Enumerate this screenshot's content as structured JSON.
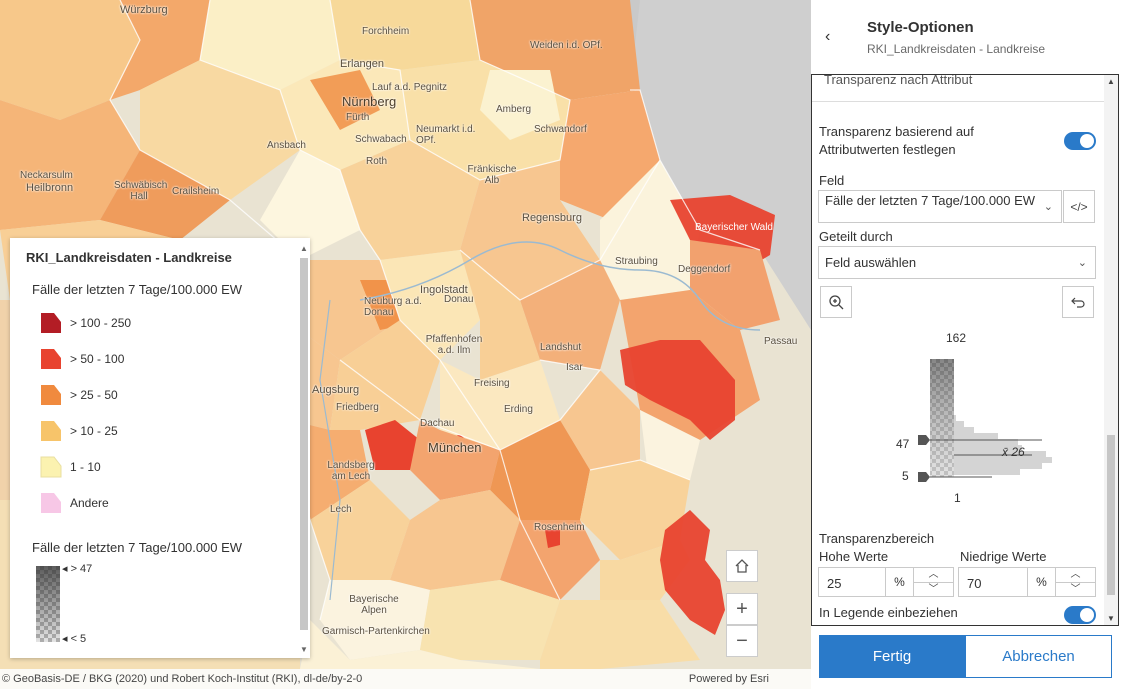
{
  "map": {
    "labels": {
      "wuerzburg": "Würzburg",
      "forchheim": "Forchheim",
      "erlangen": "Erlangen",
      "lauf": "Lauf a.d. Pegnitz",
      "nuernberg": "Nürnberg",
      "fuerth": "Fürth",
      "schwabach": "Schwabach",
      "roth": "Roth",
      "ansbach": "Ansbach",
      "neumarkt": "Neumarkt i.d. OPf.",
      "amberg": "Amberg",
      "schwandorf": "Schwandorf",
      "weiden": "Weiden i.d. OPf.",
      "fraenkische": "Fränkische Alb",
      "neckarsulm": "Neckarsulm",
      "heilbronn": "Heilbronn",
      "schwaebisch": "Schwäbisch Hall",
      "crailsheim": "Crailsheim",
      "regensburg": "Regensburg",
      "bayerwald": "Bayerischer Wald",
      "straubing": "Straubing",
      "deggendorf": "Deggendorf",
      "ingolstadt": "Ingolstadt",
      "neuburg": "Neuburg a.d. Donau",
      "donau": "Donau",
      "pfaffenhofen": "Pfaffenhofen a.d. Ilm",
      "landshut": "Landshut",
      "passau": "Passau",
      "augsburg": "Augsburg",
      "friedberg": "Friedberg",
      "dachau": "Dachau",
      "freising": "Freising",
      "erding": "Erding",
      "muenchen": "München",
      "landsberg": "Landsberg am Lech",
      "rosenheim": "Rosenheim",
      "alpen": "Bayerische Alpen",
      "garmisch": "Garmisch-Partenkirchen",
      "lech": "Lech",
      "isar": "Isar"
    },
    "zoom_in": "+",
    "zoom_out": "−",
    "attribution": "© GeoBasis-DE / BKG (2020) und Robert Koch-Institut (RKI), dl-de/by-2-0",
    "powered_by": "Powered by Esri"
  },
  "legend": {
    "layer_title": "RKI_Landkreisdaten - Landkreise",
    "field_title": "Fälle der letzten 7 Tage/100.000 EW",
    "classes": [
      {
        "label": "> 100 - 250",
        "color": "#b31d25"
      },
      {
        "label": "> 50 - 100",
        "color": "#e8432f"
      },
      {
        "label": "> 25 - 50",
        "color": "#f08a3e"
      },
      {
        "label": "> 10 - 25",
        "color": "#f7c46a"
      },
      {
        "label": "1 - 10",
        "color": "#fbf2b0"
      },
      {
        "label": "Andere",
        "color": "#f7c7e6"
      }
    ],
    "transparency_title": "Fälle der letzten 7 Tage/100.000 EW",
    "transparency_high": "> 47",
    "transparency_low": "< 5"
  },
  "panel": {
    "title": "Style-Optionen",
    "subtitle": "RKI_Landkreisdaten - Landkreise",
    "section_header": "Transparenz nach Attribut",
    "toggle_label": "Transparenz basierend auf Attributwerten festlegen",
    "field_label": "Feld",
    "field_value": "Fälle der letzten 7 Tage/100.000 EW",
    "divided_label": "Geteilt durch",
    "divided_placeholder": "Feld auswählen",
    "histogram": {
      "max": "162",
      "min": "1",
      "upper_handle": "47",
      "lower_handle": "5",
      "mean_label": "x̄ 26"
    },
    "range_label": "Transparenzbereich",
    "high_label": "Hohe Werte",
    "low_label": "Niedrige Werte",
    "high_value": "25",
    "low_value": "70",
    "percent": "%",
    "legend_toggle_label": "In Legende einbeziehen",
    "done": "Fertig",
    "cancel": "Abbrechen"
  }
}
